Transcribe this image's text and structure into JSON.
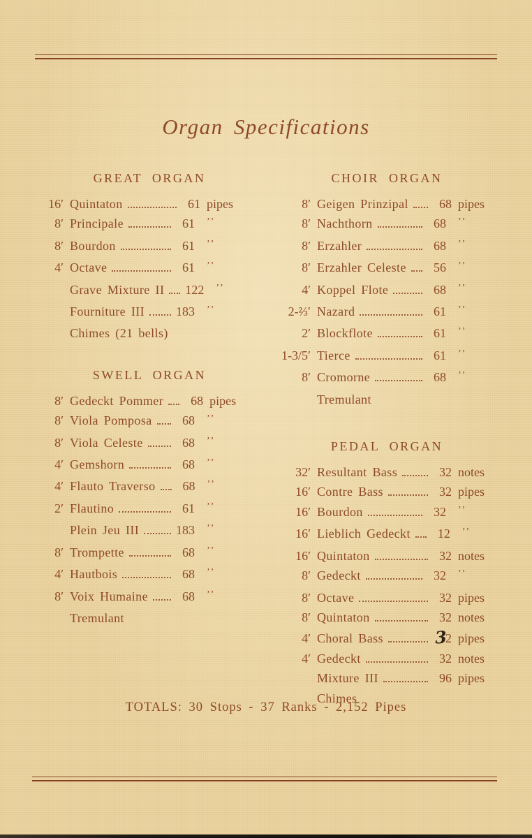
{
  "page": {
    "title": "Organ Specifications",
    "totals": "TOTALS: 30 Stops - 37 Ranks - 2,152 Pipes",
    "paper_color": "#ebd4a1",
    "ink_color": "#8e4a28",
    "handwritten_digit_color": "#2f2316",
    "ditto_glyph": "’’"
  },
  "sections": [
    {
      "title": "GREAT ORGAN",
      "column": "left",
      "rows": [
        {
          "pitch": "16′",
          "name": "Quintaton",
          "count": "61",
          "unit": "pipes"
        },
        {
          "pitch": "8′",
          "name": "Principale",
          "count": "61",
          "unit": "’’"
        },
        {
          "pitch": "8′",
          "name": "Bourdon",
          "count": "61",
          "unit": "’’"
        },
        {
          "pitch": "4′",
          "name": "Octave",
          "count": "61",
          "unit": "’’"
        },
        {
          "pitch": "",
          "name": "Grave Mixture II",
          "count": "122",
          "unit": "’’"
        },
        {
          "pitch": "",
          "name": "Fourniture III",
          "count": "183",
          "unit": "’’"
        },
        {
          "pitch": "",
          "name": "Chimes (21 bells)",
          "count": "",
          "unit": ""
        }
      ]
    },
    {
      "title": "SWELL ORGAN",
      "column": "left",
      "rows": [
        {
          "pitch": "8′",
          "name": "Gedeckt Pommer",
          "count": "68",
          "unit": "pipes"
        },
        {
          "pitch": "8′",
          "name": "Viola Pomposa",
          "count": "68",
          "unit": "’’"
        },
        {
          "pitch": "8′",
          "name": "Viola Celeste",
          "count": "68",
          "unit": "’’"
        },
        {
          "pitch": "4′",
          "name": "Gemshorn",
          "count": "68",
          "unit": "’’"
        },
        {
          "pitch": "4′",
          "name": "Flauto Traverso",
          "count": "68",
          "unit": "’’"
        },
        {
          "pitch": "2′",
          "name": "Flautino",
          "count": "61",
          "unit": "’’"
        },
        {
          "pitch": "",
          "name": "Plein Jeu III",
          "count": "183",
          "unit": "’’"
        },
        {
          "pitch": "8′",
          "name": "Trompette",
          "count": "68",
          "unit": "’’"
        },
        {
          "pitch": "4′",
          "name": "Hautbois",
          "count": "68",
          "unit": "’’"
        },
        {
          "pitch": "8′",
          "name": "Voix Humaine",
          "count": "68",
          "unit": "’’"
        },
        {
          "pitch": "",
          "name": "Tremulant",
          "count": "",
          "unit": ""
        }
      ]
    },
    {
      "title": "CHOIR ORGAN",
      "column": "right",
      "rows": [
        {
          "pitch": "8′",
          "name": "Geigen Prinzipal",
          "count": "68",
          "unit": "pipes"
        },
        {
          "pitch": "8′",
          "name": "Nachthorn",
          "count": "68",
          "unit": "’’"
        },
        {
          "pitch": "8′",
          "name": "Erzahler",
          "count": "68",
          "unit": "’’"
        },
        {
          "pitch": "8′",
          "name": "Erzahler Celeste",
          "count": "56",
          "unit": "’’"
        },
        {
          "pitch": "4′",
          "name": "Koppel Flote",
          "count": "68",
          "unit": "’’"
        },
        {
          "pitch": "2-⅔′",
          "name": "Nazard",
          "count": "61",
          "unit": "’’"
        },
        {
          "pitch": "2′",
          "name": "Blockflote",
          "count": "61",
          "unit": "’’"
        },
        {
          "pitch": "1-3/5′",
          "name": "Tierce",
          "count": "61",
          "unit": "’’"
        },
        {
          "pitch": "8′",
          "name": "Cromorne",
          "count": "68",
          "unit": "’’"
        },
        {
          "pitch": "",
          "name": "Tremulant",
          "count": "",
          "unit": ""
        }
      ]
    },
    {
      "title": "PEDAL ORGAN",
      "column": "right",
      "rows": [
        {
          "pitch": "32′",
          "name": "Resultant Bass",
          "count": "32",
          "unit": "notes"
        },
        {
          "pitch": "16′",
          "name": "Contre Bass",
          "count": "32",
          "unit": "pipes"
        },
        {
          "pitch": "16′",
          "name": "Bourdon",
          "count": "32",
          "unit": "’’"
        },
        {
          "pitch": "16′",
          "name": "Lieblich Gedeckt",
          "count": "12",
          "unit": "’’"
        },
        {
          "pitch": "16′",
          "name": "Quintaton",
          "count": "32",
          "unit": "notes"
        },
        {
          "pitch": "8′",
          "name": "Gedeckt",
          "count": "32",
          "unit": "’’"
        },
        {
          "pitch": "8′",
          "name": "Octave",
          "count": "32",
          "unit": "pipes"
        },
        {
          "pitch": "8′",
          "name": "Quintaton",
          "count": "32",
          "unit": "notes"
        },
        {
          "pitch": "4′",
          "name": "Choral Bass",
          "count": "32",
          "unit": "pipes",
          "handwritten_first_digit": true
        },
        {
          "pitch": "4′",
          "name": "Gedeckt",
          "count": "32",
          "unit": "notes"
        },
        {
          "pitch": "",
          "name": "Mixture III",
          "count": "96",
          "unit": "pipes"
        },
        {
          "pitch": "",
          "name": "Chimes",
          "count": "",
          "unit": ""
        }
      ]
    }
  ]
}
